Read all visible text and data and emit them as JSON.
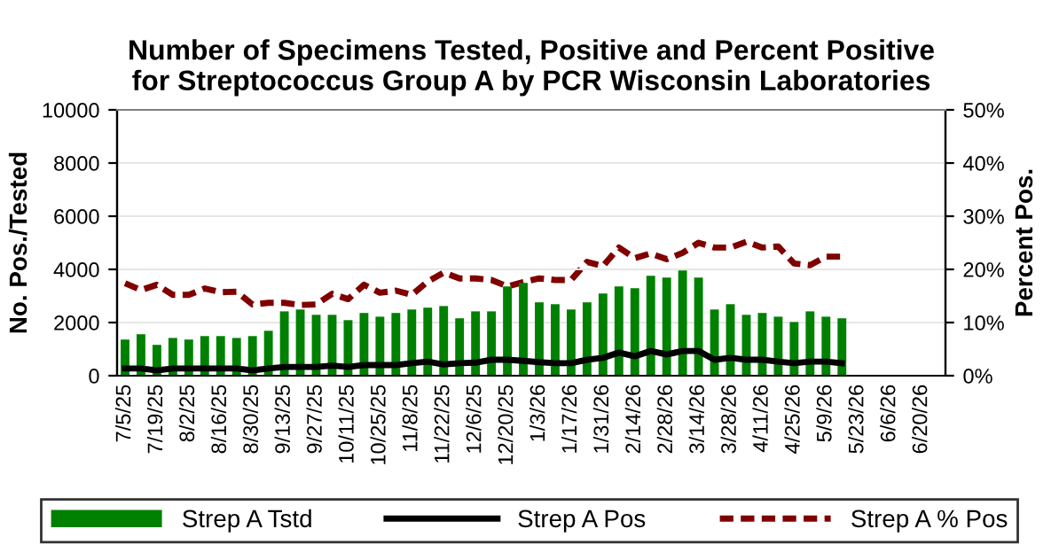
{
  "chart_data": {
    "type": "bar",
    "title": "Number of Specimens Tested, Positive and Percent Positive\nfor Streptococcus Group A by PCR Wisconsin Laboratories",
    "ylabel": "No. Pos./Tested",
    "y2label": "Percent Pos.",
    "categories": [
      "7/5/25",
      null,
      "7/19/25",
      null,
      "8/2/25",
      null,
      "8/16/25",
      null,
      "8/30/25",
      null,
      "9/13/25",
      null,
      "9/27/25",
      null,
      "10/11/25",
      null,
      "10/25/25",
      null,
      "11/8/25",
      null,
      "11/22/25",
      null,
      "12/6/25",
      null,
      "12/20/25",
      null,
      "1/3/26",
      null,
      "1/17/26",
      null,
      "1/31/26",
      null,
      "2/14/26",
      null,
      "2/28/26",
      null,
      "3/14/26",
      null,
      "3/28/26",
      null,
      "4/11/26",
      null,
      "4/25/26",
      null,
      "5/9/26",
      null,
      "5/23/26",
      null,
      "6/6/26",
      null,
      "6/20/26",
      null
    ],
    "series": [
      {
        "name": "Strep A Tstd",
        "color": "#008000",
        "values": [
          1360,
          1560,
          1160,
          1420,
          1360,
          1490,
          1490,
          1420,
          1490,
          1690,
          2420,
          2490,
          2290,
          2290,
          2090,
          2360,
          2220,
          2360,
          2490,
          2560,
          2620,
          2160,
          2420,
          2420,
          3360,
          3490,
          2760,
          2690,
          2490,
          2760,
          3090,
          3360,
          3290,
          3760,
          3690,
          3960,
          3690,
          2490,
          2690,
          2290,
          2360,
          2220,
          2020,
          2420,
          2220,
          2160,
          null,
          null,
          null,
          null,
          null,
          null
        ]
      },
      {
        "name": "Strep A Pos",
        "type": "line",
        "color": "#000000",
        "line_style": "solid",
        "values": [
          270,
          270,
          200,
          270,
          270,
          270,
          270,
          270,
          200,
          270,
          330,
          330,
          330,
          380,
          330,
          400,
          400,
          400,
          470,
          530,
          420,
          470,
          490,
          600,
          600,
          560,
          510,
          470,
          470,
          600,
          670,
          870,
          730,
          930,
          800,
          930,
          930,
          600,
          670,
          600,
          600,
          530,
          470,
          530,
          530,
          470,
          null,
          null,
          null,
          null,
          null,
          null
        ]
      },
      {
        "name": "Strep A % Pos",
        "type": "line",
        "axis": "y2",
        "color": "#800000",
        "line_style": "dashed",
        "values": [
          17.4,
          16.1,
          17.1,
          15.2,
          15.2,
          16.4,
          15.7,
          15.8,
          13.4,
          13.7,
          13.7,
          13.3,
          13.4,
          15.4,
          14.4,
          17.1,
          15.6,
          16.0,
          15.2,
          17.7,
          19.4,
          18.3,
          18.3,
          18.0,
          16.8,
          17.6,
          18.3,
          18.0,
          18.0,
          21.4,
          20.6,
          24.1,
          22.1,
          23.0,
          21.9,
          23.1,
          25.0,
          24.1,
          24.1,
          25.2,
          24.1,
          24.3,
          21.1,
          20.8,
          22.4,
          22.4,
          null,
          null,
          null,
          null,
          null,
          null
        ]
      }
    ],
    "ylim": [
      0,
      10000
    ],
    "yticks": [
      0,
      2000,
      4000,
      6000,
      8000,
      10000
    ],
    "y2lim": [
      0,
      50
    ],
    "y2ticks": [
      {
        "value": 0,
        "label": "0%"
      },
      {
        "value": 10,
        "label": "10%"
      },
      {
        "value": 20,
        "label": "20%"
      },
      {
        "value": 30,
        "label": "30%"
      },
      {
        "value": 40,
        "label": "40%"
      },
      {
        "value": 50,
        "label": "50%"
      }
    ],
    "grid": "y",
    "legend": "bottom"
  }
}
